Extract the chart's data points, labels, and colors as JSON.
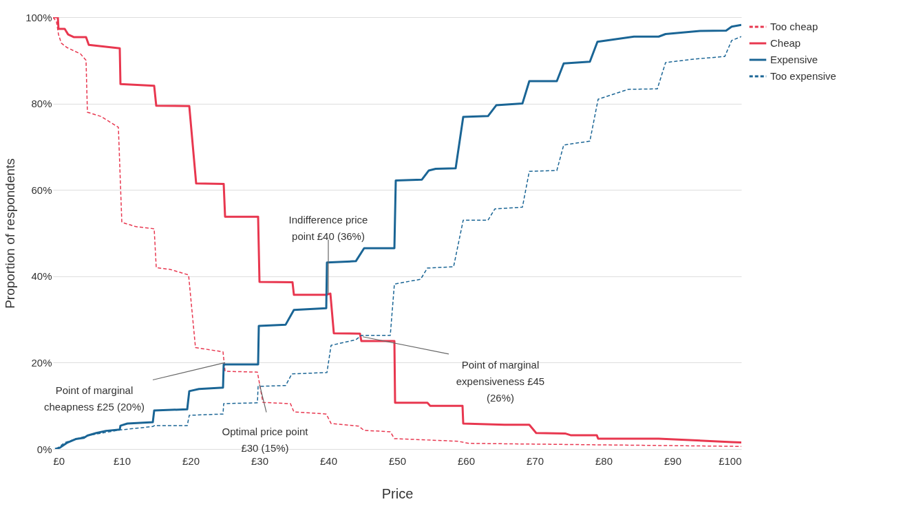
{
  "chart_data": {
    "type": "line",
    "xlabel": "Price",
    "ylabel": "Proportion of respondents",
    "xlim": [
      0,
      100
    ],
    "ylim": [
      0,
      100
    ],
    "xticks": [
      {
        "value": 0,
        "label": "£0"
      },
      {
        "value": 10,
        "label": "£10"
      },
      {
        "value": 20,
        "label": "£20"
      },
      {
        "value": 30,
        "label": "£30"
      },
      {
        "value": 40,
        "label": "£40"
      },
      {
        "value": 50,
        "label": "£50"
      },
      {
        "value": 60,
        "label": "£60"
      },
      {
        "value": 70,
        "label": "£70"
      },
      {
        "value": 80,
        "label": "£80"
      },
      {
        "value": 90,
        "label": "£90"
      },
      {
        "value": 100,
        "label": "£100"
      }
    ],
    "yticks": [
      {
        "value": 0,
        "label": "0%"
      },
      {
        "value": 20,
        "label": "20%"
      },
      {
        "value": 40,
        "label": "40%"
      },
      {
        "value": 60,
        "label": "60%"
      },
      {
        "value": 80,
        "label": "80%"
      },
      {
        "value": 100,
        "label": "100%"
      }
    ],
    "grid": "y",
    "legend": "top right",
    "marker": "none",
    "series": [
      {
        "name": "Too cheap",
        "color": "#e8374f",
        "line_style": "dashed",
        "x": [
          0,
          0.5,
          0.8,
          1.2,
          2,
          4,
          4.8,
          5,
          7,
          9.5,
          10,
          12,
          14.7,
          15,
          17,
          19.7,
          20.7,
          24.7,
          25,
          29.7,
          30.5,
          34.5,
          35,
          39.7,
          40.4,
          44.4,
          45.2,
          49,
          49.6,
          58.8,
          60.4,
          100
        ],
        "values": [
          100,
          99,
          96,
          94,
          93,
          91.5,
          90,
          78,
          77,
          74.5,
          52.5,
          51.5,
          51,
          42,
          41.6,
          40.3,
          23.5,
          22.5,
          18,
          17.8,
          10.8,
          10.5,
          8.6,
          8.1,
          5.9,
          5.3,
          4.3,
          4,
          2.4,
          1.8,
          1.3,
          0.6
        ]
      },
      {
        "name": "Cheap",
        "color": "#e8374f",
        "line_style": "solid",
        "x": [
          0,
          0.7,
          0.8,
          1.7,
          2.2,
          3,
          4.8,
          5.2,
          9.7,
          9.8,
          14.7,
          15,
          19.8,
          20.8,
          24.8,
          25,
          29.8,
          30,
          34.8,
          35,
          39.7,
          40.3,
          40.8,
          44.6,
          44.8,
          49.6,
          49.7,
          54.4,
          54.8,
          59.5,
          59.6,
          65.6,
          69.2,
          70.2,
          74.4,
          75.2,
          79,
          79.2,
          88,
          96,
          98.6,
          100
        ],
        "values": [
          100,
          100,
          97.3,
          97.3,
          96,
          95.4,
          95.4,
          93.6,
          92.8,
          84.5,
          84.1,
          79.5,
          79.4,
          61.5,
          61.4,
          53.8,
          53.8,
          38.7,
          38.6,
          35.7,
          35.7,
          36,
          26.8,
          26.7,
          25,
          25,
          10.7,
          10.7,
          10,
          10,
          5.9,
          5.6,
          5.6,
          3.7,
          3.6,
          3.2,
          3.2,
          2.4,
          2.4,
          1.8,
          1.6,
          1.5
        ]
      },
      {
        "name": "Expensive",
        "color": "#1a6595",
        "line_style": "solid",
        "x": [
          0.3,
          1,
          2,
          3.3,
          4.5,
          5,
          6.3,
          7.7,
          9.7,
          9.8,
          10.8,
          14.5,
          14.7,
          19.5,
          19.8,
          21.2,
          24.7,
          24.8,
          29.8,
          29.9,
          33.8,
          35,
          39.7,
          39.8,
          44,
          45.2,
          49.6,
          49.8,
          53.6,
          54.6,
          55.6,
          58.5,
          59.6,
          63.2,
          64.4,
          68.2,
          69.2,
          73.2,
          74.2,
          78,
          79.1,
          84.4,
          88,
          89,
          94,
          97.8,
          98.6,
          100
        ],
        "values": [
          0,
          0.3,
          1.4,
          2.3,
          2.6,
          3.1,
          3.7,
          4.2,
          4.5,
          5.4,
          5.9,
          6.2,
          8.9,
          9.2,
          13.4,
          13.9,
          14.2,
          19.6,
          19.6,
          28.5,
          28.8,
          32.2,
          32.6,
          43.2,
          43.5,
          46.5,
          46.5,
          62.2,
          62.4,
          64.5,
          64.9,
          65,
          76.9,
          77.1,
          79.6,
          80,
          85.2,
          85.2,
          89.3,
          89.7,
          94.3,
          95.5,
          95.5,
          96.1,
          96.8,
          96.9,
          97.8,
          98.2
        ]
      },
      {
        "name": "Too expensive",
        "color": "#1a6595",
        "line_style": "dashed",
        "x": [
          0.5,
          1.7,
          5,
          9.7,
          14.5,
          14.7,
          19.5,
          19.8,
          24.7,
          24.8,
          29.7,
          29.8,
          33.8,
          34.7,
          39.8,
          40.4,
          44,
          44.8,
          49,
          49.6,
          53.4,
          54.4,
          58.2,
          59.6,
          63.2,
          64.2,
          68.2,
          69.2,
          73.2,
          74.2,
          78,
          79.2,
          83.6,
          87.8,
          89,
          93.2,
          97.6,
          98.6,
          100
        ],
        "values": [
          0,
          1.5,
          3.1,
          4.4,
          5.2,
          5.4,
          5.4,
          7.8,
          8.1,
          10.5,
          10.7,
          14.5,
          14.7,
          17.4,
          17.7,
          24,
          25.3,
          26.3,
          26.3,
          38.2,
          39.3,
          41.9,
          42.2,
          53,
          53,
          55.6,
          56,
          64.3,
          64.5,
          70.4,
          71.3,
          81,
          83.3,
          83.4,
          89.5,
          90.3,
          90.9,
          94.6,
          95.5
        ]
      }
    ],
    "annotations": [
      {
        "text": "Indifference price\npoint £40 (36%)",
        "x": 40,
        "y": 36
      },
      {
        "text": "Point of marginal\ncheapness £25 (20%)",
        "x": 25,
        "y": 20
      },
      {
        "text": "Optimal price point\n£30 (15%)",
        "x": 30,
        "y": 15
      },
      {
        "text": "Point of marginal\nexpensiveness £45\n(26%)",
        "x": 45,
        "y": 26
      }
    ]
  }
}
